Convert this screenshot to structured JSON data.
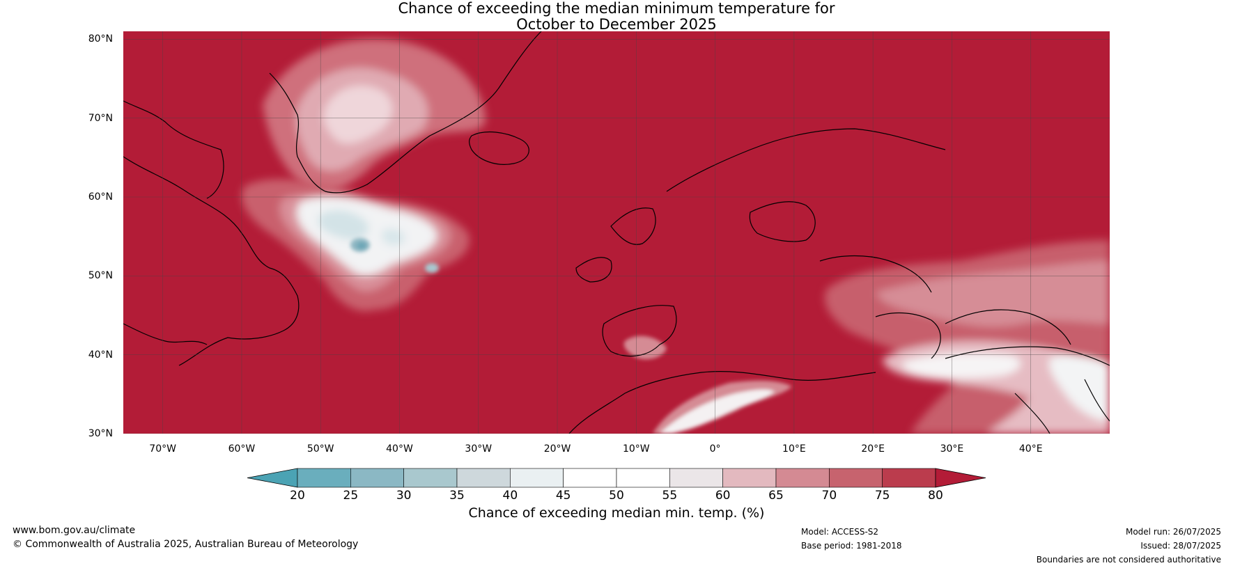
{
  "title": {
    "line1": "Chance of exceeding the median minimum temperature for",
    "line2": "October to December 2025"
  },
  "map": {
    "background_color": "#b31c37",
    "lat_labels": [
      "80°N",
      "70°N",
      "60°N",
      "50°N",
      "40°N",
      "30°N"
    ],
    "lat_values": [
      80,
      70,
      60,
      50,
      40,
      30
    ],
    "lon_labels": [
      "70°W",
      "60°W",
      "50°W",
      "40°W",
      "30°W",
      "20°W",
      "10°W",
      "0°",
      "10°E",
      "20°E",
      "30°E",
      "40°E"
    ],
    "lon_values": [
      -70,
      -60,
      -50,
      -40,
      -30,
      -20,
      -10,
      0,
      10,
      20,
      30,
      40
    ],
    "extent": {
      "lon_min": -75,
      "lon_max": 50,
      "lat_min": 30,
      "lat_max": 81
    }
  },
  "colorbar": {
    "title": "Chance of exceeding median min. temp. (%)",
    "ticks": [
      "20",
      "25",
      "30",
      "35",
      "40",
      "45",
      "50",
      "55",
      "60",
      "65",
      "70",
      "75",
      "80"
    ],
    "low_color": "#4ba3b4",
    "high_color": "#b31c37",
    "segment_colors": [
      "#6aaebd",
      "#8bb8c4",
      "#a9c8ce",
      "#ced8dc",
      "#eaf0f2",
      "#ffffff",
      "#ffffff",
      "#ebe6e8",
      "#e3b9bf",
      "#d48a93",
      "#c7636e",
      "#bb3c4d"
    ]
  },
  "footer": {
    "website": "www.bom.gov.au/climate",
    "copyright": "© Commonwealth of Australia 2025, Australian Bureau of Meteorology",
    "model": "Model: ACCESS-S2",
    "base_period": "Base period: 1981-2018",
    "model_run": "Model run: 26/07/2025",
    "issued": "Issued: 28/07/2025",
    "disclaimer": "Boundaries are not considered authoritative"
  }
}
